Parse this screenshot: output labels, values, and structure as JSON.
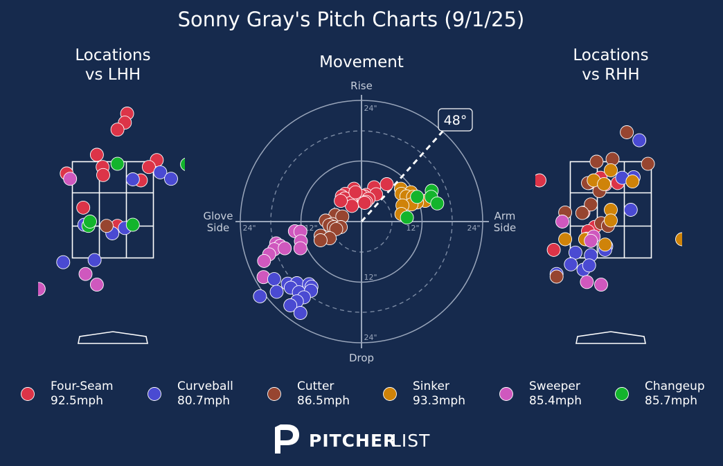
{
  "title": "Sonny Gray's Pitch Charts (9/1/25)",
  "panels": {
    "lhh": {
      "title_line1": "Locations",
      "title_line2": "vs LHH"
    },
    "movement": {
      "title": "Movement"
    },
    "rhh": {
      "title_line1": "Locations",
      "title_line2": "vs RHH"
    }
  },
  "movement_axes": {
    "top": "Rise",
    "bottom": "Drop",
    "left_line1": "Glove",
    "left_line2": "Side",
    "right_line1": "Arm",
    "right_line2": "Side",
    "ring_labels": {
      "top24": "24\"",
      "bottom12": "12\"",
      "bottom24": "24\"",
      "left24": "24\"",
      "left12": "12\"",
      "right12": "12\"",
      "right24": "24\""
    },
    "arm_angle_label": "48°",
    "arm_angle_deg": 48
  },
  "brand": {
    "part1": "PITCHER",
    "part2": "LIST"
  },
  "colors": {
    "background": "#162a4d",
    "Four-Seam": "#dc3448",
    "Curveball": "#4a4ad2",
    "Cutter": "#974530",
    "Sinker": "#cf8309",
    "Sweeper": "#cf58be",
    "Changeup": "#13b42c"
  },
  "legend": [
    {
      "pitch": "Four-Seam",
      "speed": "92.5mph"
    },
    {
      "pitch": "Curveball",
      "speed": "80.7mph"
    },
    {
      "pitch": "Cutter",
      "speed": "86.5mph"
    },
    {
      "pitch": "Sinker",
      "speed": "93.3mph"
    },
    {
      "pitch": "Sweeper",
      "speed": "85.4mph"
    },
    {
      "pitch": "Changeup",
      "speed": "85.7mph"
    }
  ],
  "chart_data": [
    {
      "type": "scatter",
      "name": "lhh_locations",
      "x_units": "feet from plate center (catcher view)",
      "y_units": "feet above ground",
      "xlim": [
        -1.8,
        1.8
      ],
      "ylim": [
        0.25,
        4.95
      ],
      "strike_zone": {
        "x": [
          -0.71,
          0.71
        ],
        "y": [
          1.6,
          3.4
        ]
      },
      "points": [
        {
          "pitch": "Four-Seam",
          "x": 0.25,
          "y": 4.3
        },
        {
          "pitch": "Four-Seam",
          "x": 0.21,
          "y": 4.13
        },
        {
          "pitch": "Four-Seam",
          "x": 0.08,
          "y": 4.0
        },
        {
          "pitch": "Four-Seam",
          "x": -0.28,
          "y": 3.53
        },
        {
          "pitch": "Four-Seam",
          "x": 0.77,
          "y": 3.43
        },
        {
          "pitch": "Four-Seam",
          "x": -0.18,
          "y": 3.3
        },
        {
          "pitch": "Four-Seam",
          "x": 0.63,
          "y": 3.3
        },
        {
          "pitch": "Four-Seam",
          "x": -0.81,
          "y": 3.18
        },
        {
          "pitch": "Four-Seam",
          "x": -0.17,
          "y": 3.15
        },
        {
          "pitch": "Four-Seam",
          "x": 0.49,
          "y": 3.05
        },
        {
          "pitch": "Four-Seam",
          "x": -0.52,
          "y": 2.54
        },
        {
          "pitch": "Four-Seam",
          "x": 0.08,
          "y": 2.2
        },
        {
          "pitch": "Curveball",
          "x": 0.35,
          "y": 3.07
        },
        {
          "pitch": "Curveball",
          "x": 0.83,
          "y": 3.2
        },
        {
          "pitch": "Curveball",
          "x": 1.02,
          "y": 3.08
        },
        {
          "pitch": "Curveball",
          "x": -0.5,
          "y": 2.22
        },
        {
          "pitch": "Curveball",
          "x": 0.21,
          "y": 2.16
        },
        {
          "pitch": "Curveball",
          "x": -0.01,
          "y": 2.06
        },
        {
          "pitch": "Curveball",
          "x": -0.32,
          "y": 1.56
        },
        {
          "pitch": "Curveball",
          "x": -0.87,
          "y": 1.52
        },
        {
          "pitch": "Cutter",
          "x": -0.11,
          "y": 2.2
        },
        {
          "pitch": "Sweeper",
          "x": -0.75,
          "y": 3.08
        },
        {
          "pitch": "Sweeper",
          "x": -0.48,
          "y": 1.3
        },
        {
          "pitch": "Sweeper",
          "x": -0.28,
          "y": 1.1
        },
        {
          "pitch": "Sweeper",
          "x": -1.3,
          "y": 1.02
        },
        {
          "pitch": "Changeup",
          "x": 0.08,
          "y": 3.36
        },
        {
          "pitch": "Changeup",
          "x": 1.3,
          "y": 3.35
        },
        {
          "pitch": "Changeup",
          "x": -0.43,
          "y": 2.2
        },
        {
          "pitch": "Changeup",
          "x": 0.35,
          "y": 2.22
        },
        {
          "pitch": "Changeup",
          "x": -0.4,
          "y": 2.28
        }
      ]
    },
    {
      "type": "scatter",
      "name": "movement",
      "x_units": "inches horizontal break",
      "y_units": "inches induced vertical break",
      "rings": [
        12,
        24
      ],
      "dashed_rings": [
        6,
        18
      ],
      "xlim": [
        -24,
        24
      ],
      "ylim": [
        -24,
        24
      ],
      "points": [
        {
          "pitch": "Four-Seam",
          "x": 2.5,
          "y": 6.8
        },
        {
          "pitch": "Four-Seam",
          "x": 5.0,
          "y": 7.4
        },
        {
          "pitch": "Four-Seam",
          "x": -1.5,
          "y": 6.5
        },
        {
          "pitch": "Four-Seam",
          "x": 0.9,
          "y": 5.3
        },
        {
          "pitch": "Four-Seam",
          "x": 2.9,
          "y": 5.4
        },
        {
          "pitch": "Four-Seam",
          "x": 0.5,
          "y": 5.0
        },
        {
          "pitch": "Four-Seam",
          "x": -0.1,
          "y": 5.1
        },
        {
          "pitch": "Four-Seam",
          "x": 1.4,
          "y": 4.5
        },
        {
          "pitch": "Four-Seam",
          "x": -1.1,
          "y": 4.0
        },
        {
          "pitch": "Four-Seam",
          "x": -2.0,
          "y": 4.5
        },
        {
          "pitch": "Four-Seam",
          "x": -3.2,
          "y": 5.5
        },
        {
          "pitch": "Four-Seam",
          "x": -3.9,
          "y": 5.0
        },
        {
          "pitch": "Four-Seam",
          "x": -3.3,
          "y": 4.6
        },
        {
          "pitch": "Four-Seam",
          "x": -2.1,
          "y": 3.7
        },
        {
          "pitch": "Four-Seam",
          "x": 0.9,
          "y": 3.9
        },
        {
          "pitch": "Four-Seam",
          "x": -1.9,
          "y": 3.1
        },
        {
          "pitch": "Four-Seam",
          "x": 0.6,
          "y": 3.7
        },
        {
          "pitch": "Four-Seam",
          "x": -4.1,
          "y": 4.1
        },
        {
          "pitch": "Four-Seam",
          "x": -1.2,
          "y": 5.8
        },
        {
          "pitch": "Sinker",
          "x": 7.8,
          "y": 6.5
        },
        {
          "pitch": "Sinker",
          "x": 9.8,
          "y": 5.8
        },
        {
          "pitch": "Sinker",
          "x": 7.9,
          "y": 5.5
        },
        {
          "pitch": "Sinker",
          "x": 8.9,
          "y": 5.0
        },
        {
          "pitch": "Sinker",
          "x": 10.2,
          "y": 4.9
        },
        {
          "pitch": "Sinker",
          "x": 11.0,
          "y": 4.6
        },
        {
          "pitch": "Sinker",
          "x": 12.6,
          "y": 4.1
        },
        {
          "pitch": "Sinker",
          "x": 11.0,
          "y": 3.8
        },
        {
          "pitch": "Sinker",
          "x": 9.9,
          "y": 3.4
        },
        {
          "pitch": "Sinker",
          "x": 8.1,
          "y": 3.2
        },
        {
          "pitch": "Sinker",
          "x": 7.9,
          "y": 1.5
        },
        {
          "pitch": "Changeup",
          "x": 13.9,
          "y": 6.1
        },
        {
          "pitch": "Changeup",
          "x": 11.0,
          "y": 4.9
        },
        {
          "pitch": "Changeup",
          "x": 13.8,
          "y": 4.9
        },
        {
          "pitch": "Changeup",
          "x": 15.0,
          "y": 3.6
        },
        {
          "pitch": "Changeup",
          "x": 9.0,
          "y": 0.8
        },
        {
          "pitch": "Cutter",
          "x": -5.2,
          "y": 1.3
        },
        {
          "pitch": "Cutter",
          "x": -3.8,
          "y": 1.0
        },
        {
          "pitch": "Cutter",
          "x": -7.1,
          "y": 0.2
        },
        {
          "pitch": "Cutter",
          "x": -5.8,
          "y": -0.5
        },
        {
          "pitch": "Cutter",
          "x": -6.4,
          "y": -0.7
        },
        {
          "pitch": "Cutter",
          "x": -5.5,
          "y": -1.1
        },
        {
          "pitch": "Cutter",
          "x": -4.1,
          "y": -1.1
        },
        {
          "pitch": "Cutter",
          "x": -5.0,
          "y": -1.5
        },
        {
          "pitch": "Cutter",
          "x": -8.1,
          "y": -2.8
        },
        {
          "pitch": "Cutter",
          "x": -6.3,
          "y": -3.3
        },
        {
          "pitch": "Cutter",
          "x": -8.1,
          "y": -3.7
        },
        {
          "pitch": "Sweeper",
          "x": -13.2,
          "y": -1.9
        },
        {
          "pitch": "Sweeper",
          "x": -12.1,
          "y": -2.0
        },
        {
          "pitch": "Sweeper",
          "x": -12.0,
          "y": -3.9
        },
        {
          "pitch": "Sweeper",
          "x": -16.9,
          "y": -4.3
        },
        {
          "pitch": "Sweeper",
          "x": -16.1,
          "y": -4.8
        },
        {
          "pitch": "Sweeper",
          "x": -17.3,
          "y": -5.5
        },
        {
          "pitch": "Sweeper",
          "x": -15.2,
          "y": -5.3
        },
        {
          "pitch": "Sweeper",
          "x": -12.1,
          "y": -5.3
        },
        {
          "pitch": "Sweeper",
          "x": -18.3,
          "y": -6.5
        },
        {
          "pitch": "Sweeper",
          "x": -19.3,
          "y": -7.8
        },
        {
          "pitch": "Sweeper",
          "x": -19.4,
          "y": -11.0
        },
        {
          "pitch": "Curveball",
          "x": -17.3,
          "y": -11.4
        },
        {
          "pitch": "Curveball",
          "x": -14.6,
          "y": -12.3
        },
        {
          "pitch": "Curveball",
          "x": -12.8,
          "y": -12.2
        },
        {
          "pitch": "Curveball",
          "x": -10.4,
          "y": -12.4
        },
        {
          "pitch": "Curveball",
          "x": -9.9,
          "y": -12.9
        },
        {
          "pitch": "Curveball",
          "x": -14.0,
          "y": -13.1
        },
        {
          "pitch": "Curveball",
          "x": -12.4,
          "y": -14.0
        },
        {
          "pitch": "Curveball",
          "x": -10.0,
          "y": -13.7
        },
        {
          "pitch": "Curveball",
          "x": -16.8,
          "y": -13.9
        },
        {
          "pitch": "Curveball",
          "x": -11.4,
          "y": -15.0
        },
        {
          "pitch": "Curveball",
          "x": -12.8,
          "y": -15.8
        },
        {
          "pitch": "Curveball",
          "x": -20.1,
          "y": -14.8
        },
        {
          "pitch": "Curveball",
          "x": -14.1,
          "y": -16.6
        },
        {
          "pitch": "Curveball",
          "x": -12.1,
          "y": -18.1
        }
      ]
    },
    {
      "type": "scatter",
      "name": "rhh_locations",
      "x_units": "feet from plate center (catcher view)",
      "y_units": "feet above ground",
      "xlim": [
        -1.8,
        1.8
      ],
      "ylim": [
        0.25,
        4.95
      ],
      "strike_zone": {
        "x": [
          -0.71,
          0.71
        ],
        "y": [
          1.6,
          3.4
        ]
      },
      "points": [
        {
          "pitch": "Four-Seam",
          "x": -0.38,
          "y": 3.0
        },
        {
          "pitch": "Four-Seam",
          "x": -0.18,
          "y": 3.1
        },
        {
          "pitch": "Four-Seam",
          "x": -0.1,
          "y": 2.97
        },
        {
          "pitch": "Four-Seam",
          "x": 0.12,
          "y": 3.0
        },
        {
          "pitch": "Four-Seam",
          "x": -1.0,
          "y": 1.75
        },
        {
          "pitch": "Four-Seam",
          "x": -0.28,
          "y": 2.18
        },
        {
          "pitch": "Four-Seam",
          "x": -0.4,
          "y": 2.1
        },
        {
          "pitch": "Four-Seam",
          "x": -0.48,
          "y": 2.45
        },
        {
          "pitch": "Four-Seam",
          "x": -1.25,
          "y": 3.05
        },
        {
          "pitch": "Curveball",
          "x": 0.5,
          "y": 3.8
        },
        {
          "pitch": "Curveball",
          "x": 0.4,
          "y": 3.11
        },
        {
          "pitch": "Curveball",
          "x": 0.2,
          "y": 3.1
        },
        {
          "pitch": "Curveball",
          "x": 0.35,
          "y": 2.5
        },
        {
          "pitch": "Curveball",
          "x": -0.08,
          "y": 1.82
        },
        {
          "pitch": "Curveball",
          "x": -0.62,
          "y": 1.7
        },
        {
          "pitch": "Curveball",
          "x": -0.7,
          "y": 1.48
        },
        {
          "pitch": "Curveball",
          "x": -0.35,
          "y": 1.65
        },
        {
          "pitch": "Curveball",
          "x": -0.1,
          "y": 1.75
        },
        {
          "pitch": "Curveball",
          "x": -0.48,
          "y": 1.38
        },
        {
          "pitch": "Curveball",
          "x": -0.38,
          "y": 1.46
        },
        {
          "pitch": "Curveball",
          "x": -0.95,
          "y": 1.3
        },
        {
          "pitch": "Curveball",
          "x": -1.5,
          "y": 1.0
        },
        {
          "pitch": "Cutter",
          "x": 0.28,
          "y": 3.95
        },
        {
          "pitch": "Cutter",
          "x": 0.65,
          "y": 3.36
        },
        {
          "pitch": "Cutter",
          "x": -0.25,
          "y": 3.4
        },
        {
          "pitch": "Cutter",
          "x": 0.03,
          "y": 3.45
        },
        {
          "pitch": "Cutter",
          "x": -0.4,
          "y": 3.0
        },
        {
          "pitch": "Cutter",
          "x": -0.2,
          "y": 2.85
        },
        {
          "pitch": "Cutter",
          "x": -0.35,
          "y": 2.6
        },
        {
          "pitch": "Cutter",
          "x": -0.5,
          "y": 2.44
        },
        {
          "pitch": "Cutter",
          "x": -0.17,
          "y": 2.25
        },
        {
          "pitch": "Cutter",
          "x": -0.05,
          "y": 2.2
        },
        {
          "pitch": "Cutter",
          "x": -0.42,
          "y": 1.96
        },
        {
          "pitch": "Cutter",
          "x": -0.95,
          "y": 1.25
        },
        {
          "pitch": "Cutter",
          "x": -0.8,
          "y": 2.45
        },
        {
          "pitch": "Sinker",
          "x": 0.0,
          "y": 3.24
        },
        {
          "pitch": "Sinker",
          "x": -0.3,
          "y": 3.05
        },
        {
          "pitch": "Sinker",
          "x": -0.12,
          "y": 2.98
        },
        {
          "pitch": "Sinker",
          "x": 0.38,
          "y": 3.03
        },
        {
          "pitch": "Sinker",
          "x": 0.0,
          "y": 2.5
        },
        {
          "pitch": "Sinker",
          "x": 0.0,
          "y": 2.3
        },
        {
          "pitch": "Sinker",
          "x": -0.8,
          "y": 1.95
        },
        {
          "pitch": "Sinker",
          "x": -0.45,
          "y": 1.95
        },
        {
          "pitch": "Sinker",
          "x": -0.1,
          "y": 1.85
        },
        {
          "pitch": "Sinker",
          "x": 1.25,
          "y": 1.95
        },
        {
          "pitch": "Sinker",
          "x": -1.5,
          "y": 3.07
        },
        {
          "pitch": "Sweeper",
          "x": -0.85,
          "y": 2.28
        },
        {
          "pitch": "Sweeper",
          "x": -0.3,
          "y": 2.0
        },
        {
          "pitch": "Sweeper",
          "x": -0.35,
          "y": 1.92
        },
        {
          "pitch": "Sweeper",
          "x": -0.42,
          "y": 1.15
        },
        {
          "pitch": "Sweeper",
          "x": -0.17,
          "y": 1.1
        },
        {
          "pitch": "Sweeper",
          "x": -1.48,
          "y": 3.03
        },
        {
          "pitch": "Sweeper",
          "x": -1.45,
          "y": 0.33
        }
      ]
    }
  ]
}
